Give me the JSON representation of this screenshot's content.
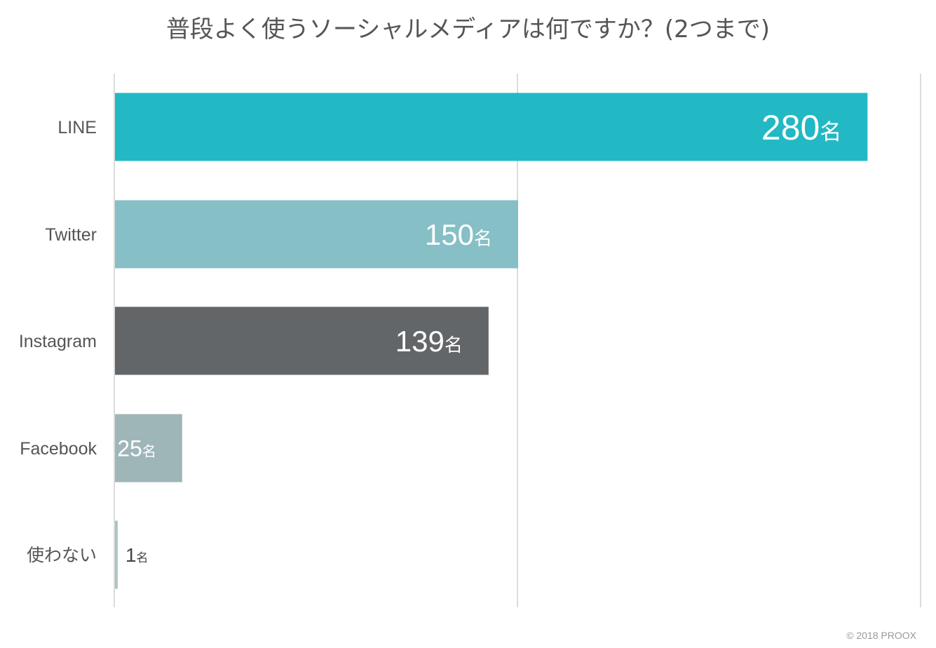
{
  "chart_data": {
    "type": "bar",
    "orientation": "horizontal",
    "title": "普段よく使うソーシャルメディアは何ですか？(2つまで)",
    "categories": [
      "LINE",
      "Twitter",
      "Instagram",
      "Facebook",
      "使わない"
    ],
    "values": [
      280,
      150,
      139,
      25,
      1
    ],
    "data_labels": [
      "280",
      "150",
      "139",
      "25",
      "1"
    ],
    "unit": "名",
    "xlim": [
      0,
      300
    ],
    "gridlines": [
      0,
      150,
      300
    ],
    "grid": true,
    "colors": [
      "#22b8c4",
      "#86bfc6",
      "#636668",
      "#9fb6b8",
      "#a9c2c4"
    ]
  },
  "footer": {
    "credit": "© 2018 PROOX"
  }
}
